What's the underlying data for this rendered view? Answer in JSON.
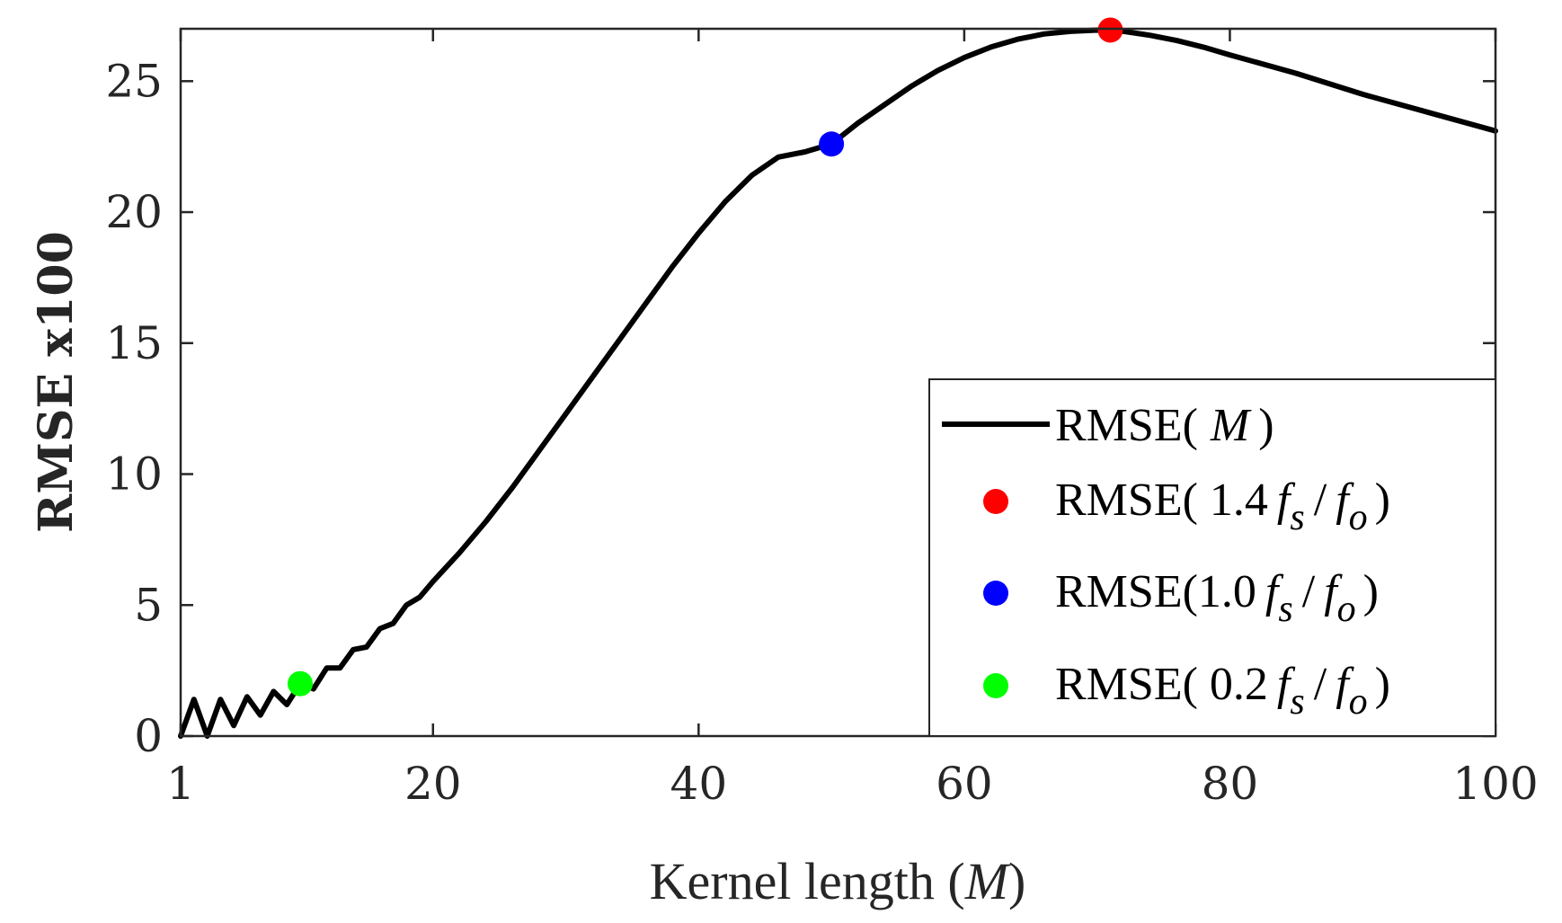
{
  "chart_data": {
    "type": "line",
    "title": "",
    "xlabel": "Kernel length (",
    "xlabel_var": "M",
    "xlabel_close": ")",
    "ylabel": "RMSE x100",
    "xlim": [
      1,
      100
    ],
    "ylim": [
      0,
      27
    ],
    "xticks": [
      1,
      20,
      40,
      60,
      80,
      100
    ],
    "yticks": [
      0,
      5,
      10,
      15,
      20,
      25
    ],
    "series": [
      {
        "name": "RMSE( M )",
        "color": "#000000",
        "x": [
          1,
          2,
          3,
          4,
          5,
          6,
          7,
          8,
          9,
          10,
          11,
          12,
          13,
          14,
          15,
          16,
          17,
          18,
          19,
          20,
          22,
          24,
          26,
          28,
          30,
          32,
          34,
          36,
          38,
          40,
          42,
          44,
          46,
          48,
          50,
          52,
          54,
          56,
          58,
          60,
          62,
          64,
          66,
          68,
          70,
          72,
          74,
          76,
          78,
          80,
          85,
          90,
          95,
          100
        ],
        "y": [
          0.0,
          1.4,
          0.0,
          1.4,
          0.4,
          1.5,
          0.8,
          1.7,
          1.2,
          2.0,
          1.8,
          2.6,
          2.6,
          3.3,
          3.4,
          4.1,
          4.3,
          5.0,
          5.3,
          5.9,
          7.0,
          8.2,
          9.5,
          10.9,
          12.3,
          13.7,
          15.1,
          16.5,
          17.9,
          19.2,
          20.4,
          21.4,
          22.1,
          22.3,
          22.6,
          23.4,
          24.1,
          24.8,
          25.4,
          25.9,
          26.3,
          26.6,
          26.8,
          26.9,
          26.95,
          26.9,
          26.75,
          26.55,
          26.3,
          26.0,
          25.3,
          24.5,
          23.8,
          23.1
        ]
      }
    ],
    "markers": [
      {
        "name": "RMSE( 1.4",
        "var": "f",
        "sub": "s",
        "sep": "/",
        "var2": "f",
        "sub2": "o",
        "close": ")",
        "color": "#ff0000",
        "x": 71,
        "y": 26.95
      },
      {
        "name": "RMSE(1.0",
        "var": "f",
        "sub": "s",
        "sep": "/",
        "var2": "f",
        "sub2": "o",
        "close": ")",
        "color": "#0000ff",
        "x": 50,
        "y": 22.6
      },
      {
        "name": "RMSE( 0.2",
        "var": "f",
        "sub": "s",
        "sep": "/",
        "var2": "f",
        "sub2": "o",
        "close": ")",
        "color": "#00ff00",
        "x": 10,
        "y": 2.0
      }
    ],
    "legend": {
      "position": "bottom-right",
      "line_label_pre": "RMSE(",
      "line_label_var": "M",
      "line_label_post": ")"
    }
  }
}
